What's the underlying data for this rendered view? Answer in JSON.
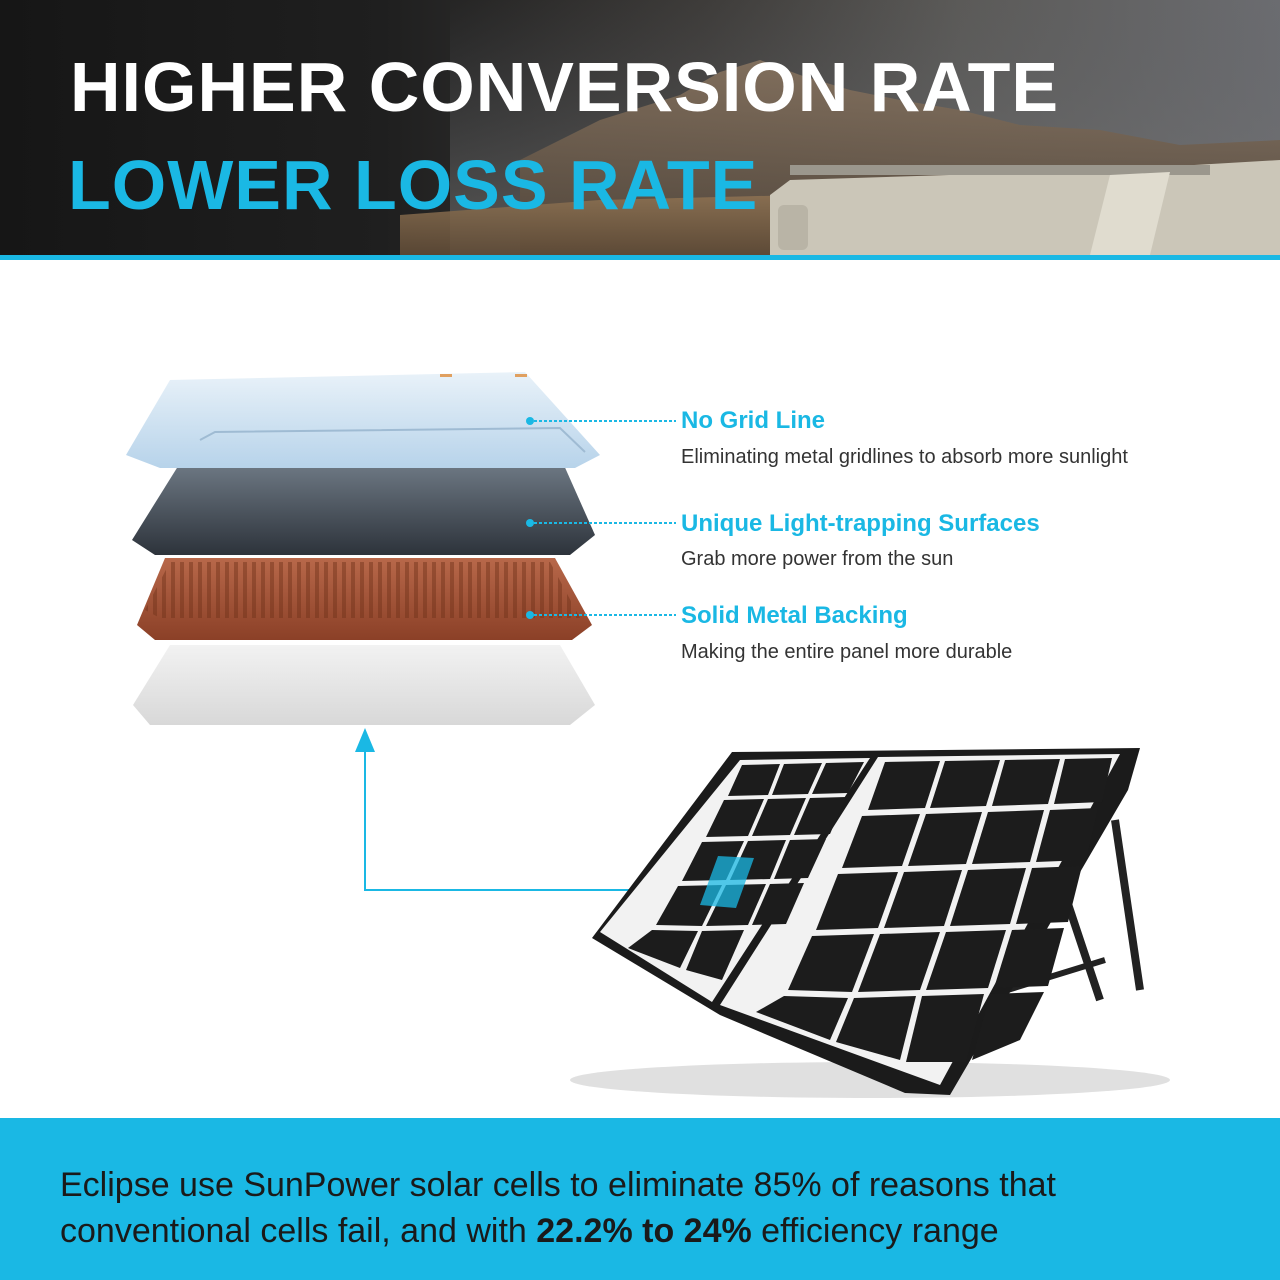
{
  "header": {
    "title_line1": "HIGHER CONVERSION RATE",
    "title_line2": "LOWER LOSS RATE",
    "accent_color": "#1ab8e4"
  },
  "features": [
    {
      "title": "No Grid Line",
      "description": "Eliminating metal gridlines to absorb more sunlight"
    },
    {
      "title": "Unique Light-trapping Surfaces",
      "description": "Grab more power from the sun"
    },
    {
      "title": "Solid Metal Backing",
      "description": "Making the entire panel more durable"
    }
  ],
  "layers": [
    {
      "name": "glass-layer",
      "color": "#cfe3f2"
    },
    {
      "name": "cell-layer",
      "color": "#3f4650"
    },
    {
      "name": "metal-backing-layer",
      "color": "#a8583a"
    },
    {
      "name": "base-layer",
      "color": "#e6e6e6"
    }
  ],
  "footer": {
    "text_part1": "Eclipse use SunPower solar cells to eliminate 85% of reasons that conventional cells fail, and with ",
    "text_bold": "22.2% to 24%",
    "text_part2": " efficiency range"
  }
}
